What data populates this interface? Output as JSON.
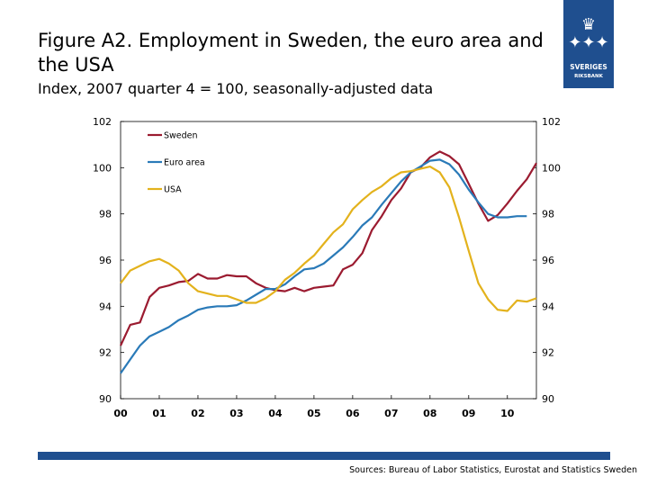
{
  "header": {
    "title": "Figure A2. Employment in Sweden, the euro area and the USA",
    "subtitle": "Index, 2007 quarter 4 = 100, seasonally-adjusted data"
  },
  "logo": {
    "text": "SVERIGES",
    "subtext": "RIKSBANK",
    "icon": "crown-crest-icon"
  },
  "footer": {
    "source": "Sources: Bureau of Labor Statistics, Eurostat and Statistics Sweden"
  },
  "colors": {
    "sweden": "#9b1b30",
    "euro_area": "#2a7ab8",
    "usa": "#e3b21c",
    "brand": "#1f4f8f"
  },
  "chart_data": {
    "type": "line",
    "title": "Figure A2. Employment in Sweden, the euro area and the USA",
    "ylabel": "Index, 2007 quarter 4 = 100, seasonally-adjusted data",
    "xlabel": "",
    "xlim": [
      2000.0,
      2010.75
    ],
    "ylim": [
      90,
      102
    ],
    "yticks": [
      90,
      92,
      94,
      96,
      98,
      100,
      102
    ],
    "xticks": [
      "00",
      "01",
      "02",
      "03",
      "04",
      "05",
      "06",
      "07",
      "08",
      "09",
      "10"
    ],
    "xtick_positions": [
      2000,
      2001,
      2002,
      2003,
      2004,
      2005,
      2006,
      2007,
      2008,
      2009,
      2010
    ],
    "legend_position": "top-left",
    "grid": false,
    "series": [
      {
        "name": "Sweden",
        "color": "#9b1b30",
        "x": [
          2000.0,
          2000.25,
          2000.5,
          2000.75,
          2001.0,
          2001.25,
          2001.5,
          2001.75,
          2002.0,
          2002.25,
          2002.5,
          2002.75,
          2003.0,
          2003.25,
          2003.5,
          2003.75,
          2004.0,
          2004.25,
          2004.5,
          2004.75,
          2005.0,
          2005.25,
          2005.5,
          2005.75,
          2006.0,
          2006.25,
          2006.5,
          2006.75,
          2007.0,
          2007.25,
          2007.5,
          2007.75,
          2008.0,
          2008.25,
          2008.5,
          2008.75,
          2009.0,
          2009.25,
          2009.5,
          2009.75,
          2010.0,
          2010.25,
          2010.5,
          2010.75
        ],
        "values": [
          92.3,
          93.2,
          93.3,
          94.4,
          94.8,
          94.9,
          95.05,
          95.1,
          95.4,
          95.2,
          95.2,
          95.35,
          95.3,
          95.3,
          95.0,
          94.8,
          94.7,
          94.65,
          94.8,
          94.65,
          94.8,
          94.85,
          94.9,
          95.6,
          95.8,
          96.3,
          97.3,
          97.9,
          98.6,
          99.1,
          99.8,
          100.0,
          100.45,
          100.7,
          100.5,
          100.15,
          99.3,
          98.45,
          97.7,
          97.95,
          98.45,
          99.0,
          99.5,
          100.2
        ]
      },
      {
        "name": "Euro area",
        "color": "#2a7ab8",
        "x": [
          2000.0,
          2000.25,
          2000.5,
          2000.75,
          2001.0,
          2001.25,
          2001.5,
          2001.75,
          2002.0,
          2002.25,
          2002.5,
          2002.75,
          2003.0,
          2003.25,
          2003.5,
          2003.75,
          2004.0,
          2004.25,
          2004.5,
          2004.75,
          2005.0,
          2005.25,
          2005.5,
          2005.75,
          2006.0,
          2006.25,
          2006.5,
          2006.75,
          2007.0,
          2007.25,
          2007.5,
          2007.75,
          2008.0,
          2008.25,
          2008.5,
          2008.75,
          2009.0,
          2009.25,
          2009.5,
          2009.75,
          2010.0,
          2010.25,
          2010.5
        ],
        "values": [
          91.1,
          91.7,
          92.3,
          92.7,
          92.9,
          93.1,
          93.4,
          93.6,
          93.85,
          93.95,
          94.0,
          94.0,
          94.05,
          94.25,
          94.5,
          94.75,
          94.75,
          94.95,
          95.3,
          95.6,
          95.65,
          95.85,
          96.2,
          96.55,
          97.0,
          97.5,
          97.85,
          98.4,
          98.9,
          99.4,
          99.8,
          100.05,
          100.3,
          100.35,
          100.15,
          99.7,
          99.05,
          98.5,
          98.0,
          97.85,
          97.85,
          97.9,
          97.9
        ]
      },
      {
        "name": "USA",
        "color": "#e3b21c",
        "x": [
          2000.0,
          2000.25,
          2000.5,
          2000.75,
          2001.0,
          2001.25,
          2001.5,
          2001.75,
          2002.0,
          2002.25,
          2002.5,
          2002.75,
          2003.0,
          2003.25,
          2003.5,
          2003.75,
          2004.0,
          2004.25,
          2004.5,
          2004.75,
          2005.0,
          2005.25,
          2005.5,
          2005.75,
          2006.0,
          2006.25,
          2006.5,
          2006.75,
          2007.0,
          2007.25,
          2007.5,
          2007.75,
          2008.0,
          2008.25,
          2008.5,
          2008.75,
          2009.0,
          2009.25,
          2009.5,
          2009.75,
          2010.0,
          2010.25,
          2010.5,
          2010.75
        ],
        "values": [
          95.0,
          95.55,
          95.75,
          95.95,
          96.05,
          95.85,
          95.55,
          95.0,
          94.65,
          94.55,
          94.45,
          94.45,
          94.3,
          94.15,
          94.15,
          94.35,
          94.65,
          95.15,
          95.45,
          95.85,
          96.2,
          96.7,
          97.2,
          97.55,
          98.2,
          98.6,
          98.95,
          99.2,
          99.55,
          99.8,
          99.85,
          99.95,
          100.05,
          99.8,
          99.15,
          97.85,
          96.4,
          95.0,
          94.3,
          93.85,
          93.8,
          94.25,
          94.2,
          94.35
        ]
      }
    ]
  }
}
